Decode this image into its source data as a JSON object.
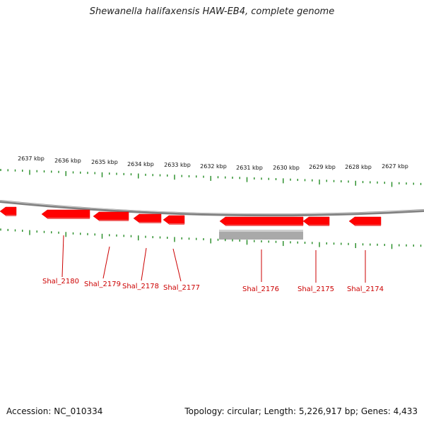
{
  "title": "Shewanella halifaxensis HAW-EB4, complete genome",
  "footer": {
    "accession": "Accession: NC_010334",
    "summary": "Topology: circular; Length: 5,226,917 bp; Genes: 4,433"
  },
  "colors": {
    "gene": "#ff0000",
    "gene_label": "#cc0000",
    "tick": "#228b22",
    "backbone": "#808080",
    "gray_feature": "#a9a9a9"
  },
  "kbp_labels": [
    "2637 kbp",
    "2636 kbp",
    "2635 kbp",
    "2634 kbp",
    "2633 kbp",
    "2632 kbp",
    "2631 kbp",
    "2630 kbp",
    "2629 kbp",
    "2628 kbp",
    "2627 kbp"
  ],
  "genes": [
    {
      "label": "",
      "strand": "reverse"
    },
    {
      "label": "Shal_2180",
      "strand": "reverse"
    },
    {
      "label": "Shal_2179",
      "strand": "reverse"
    },
    {
      "label": "Shal_2178",
      "strand": "reverse"
    },
    {
      "label": "Shal_2177",
      "strand": "reverse"
    },
    {
      "label": "Shal_2176",
      "strand": "reverse"
    },
    {
      "label": "Shal_2175",
      "strand": "reverse"
    },
    {
      "label": "Shal_2174",
      "strand": "reverse"
    }
  ]
}
